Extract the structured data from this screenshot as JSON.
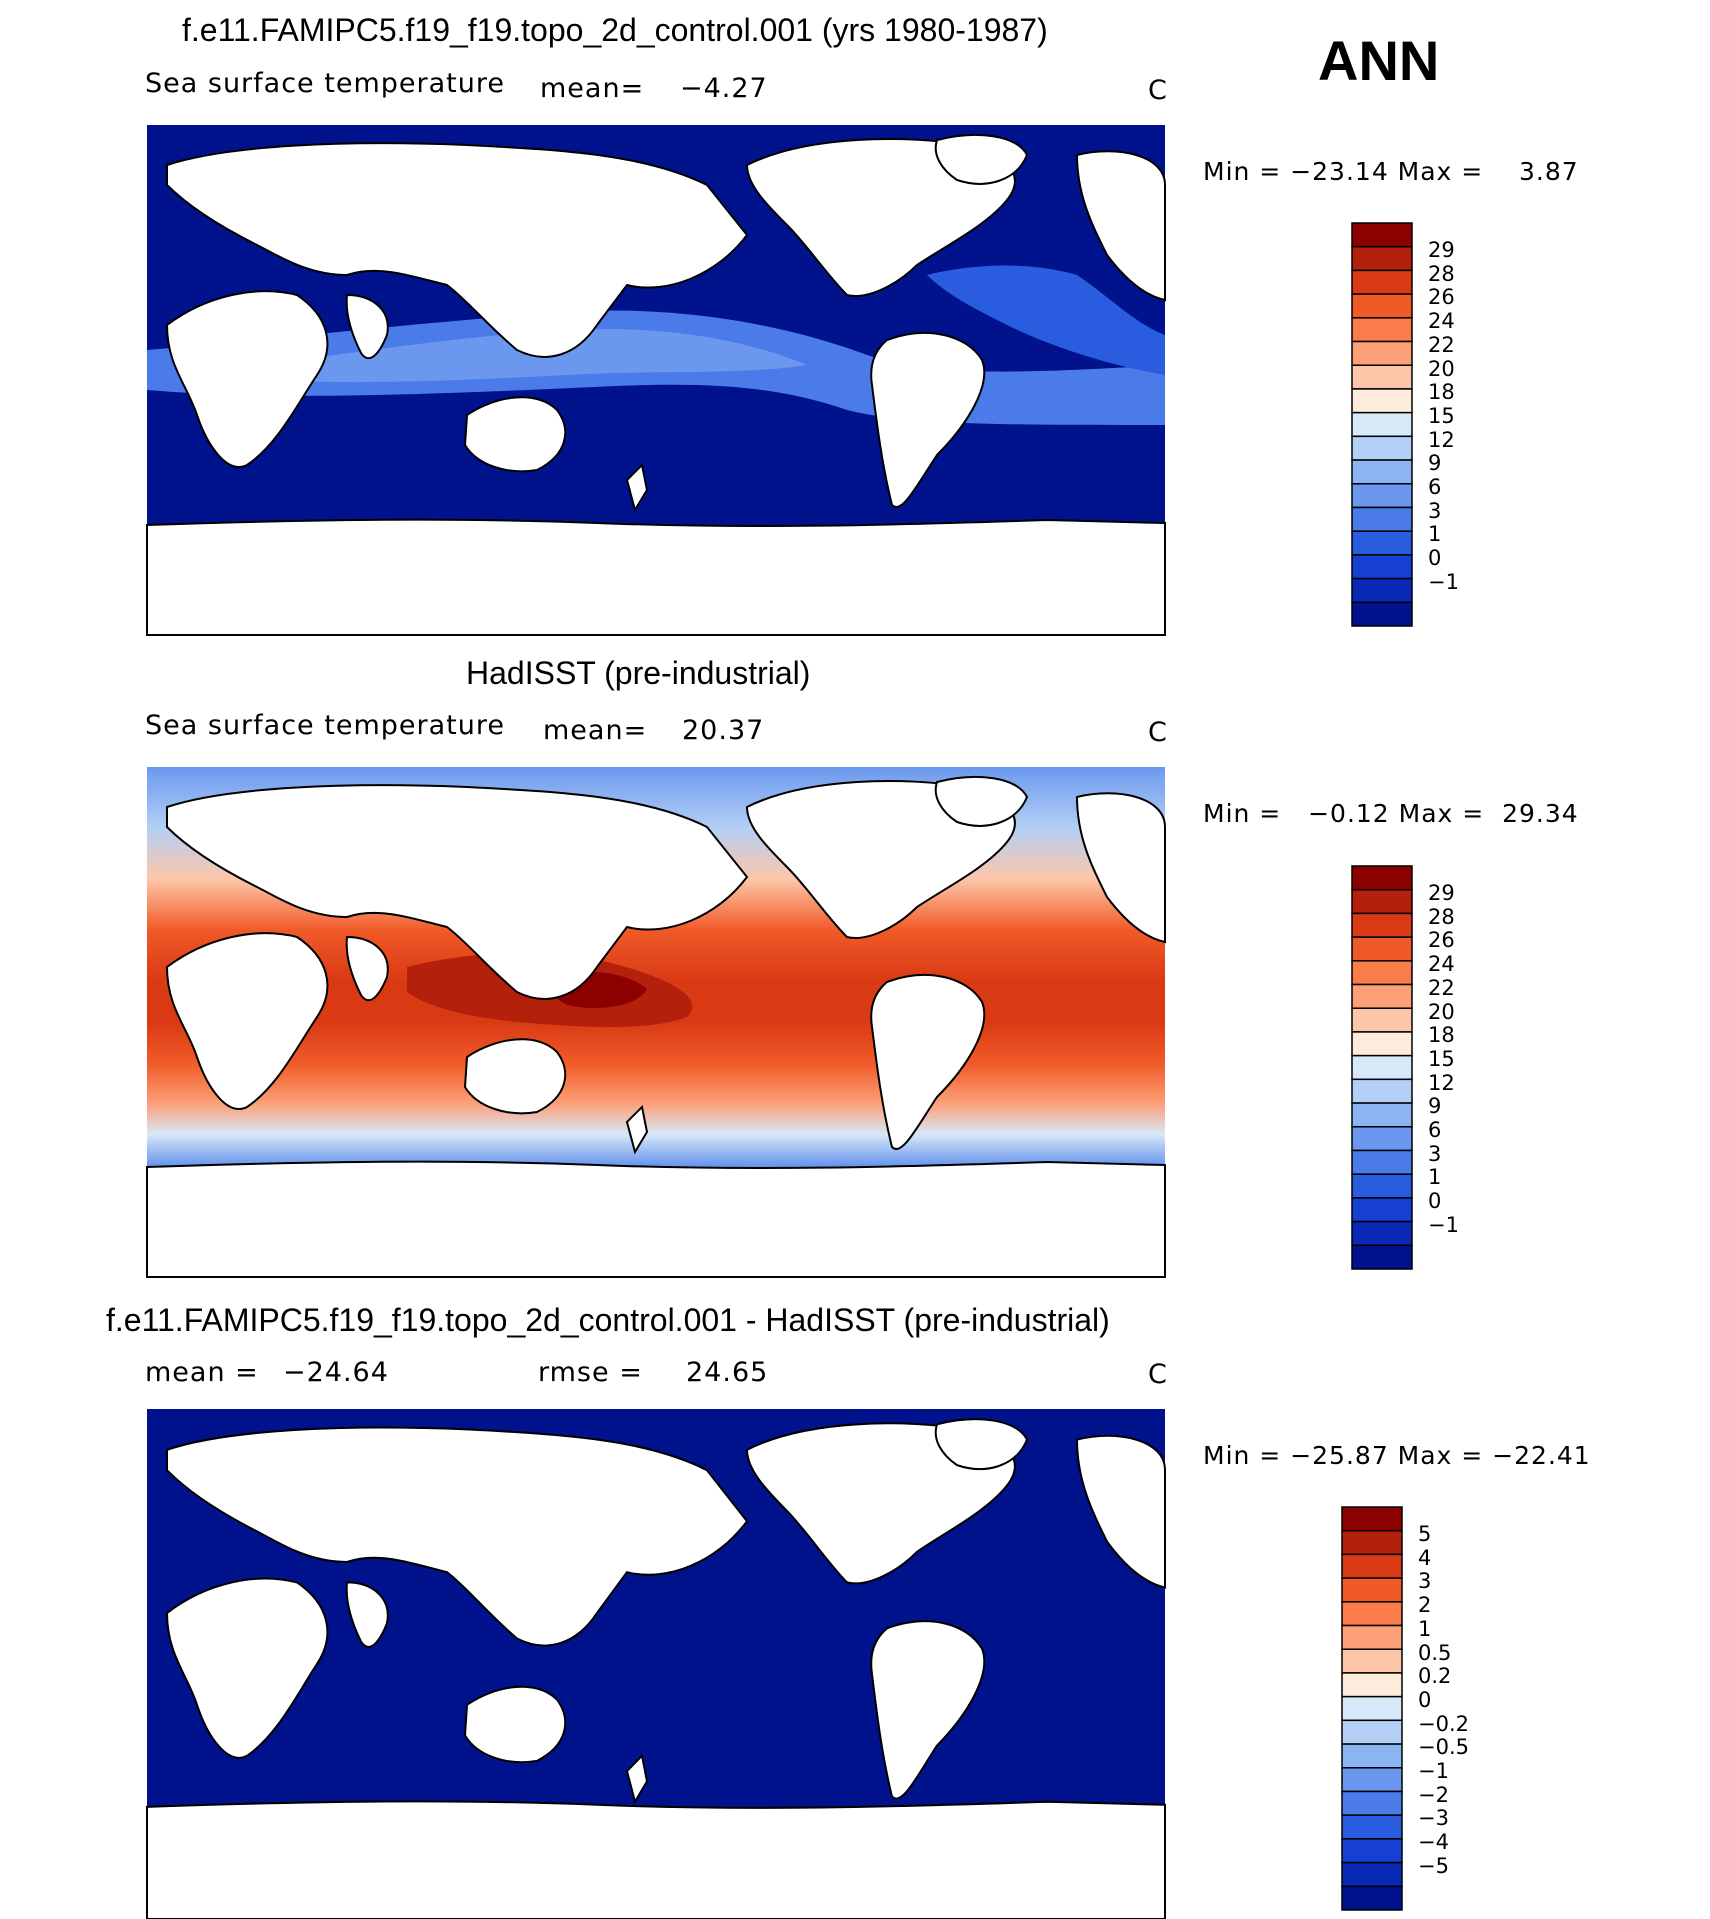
{
  "season": "ANN",
  "units": "C",
  "colorbars": {
    "sst_colors": [
      "#8c0000",
      "#b3200c",
      "#d93a14",
      "#f05a28",
      "#fa7c4a",
      "#fca078",
      "#fdc6a8",
      "#fdebdc",
      "#d7e8f8",
      "#b4cff5",
      "#8db4f2",
      "#6b98ee",
      "#4b7be8",
      "#2a5ce0",
      "#1640d2",
      "#0a28b6",
      "#00128c"
    ],
    "sst_labels": [
      "29",
      "28",
      "26",
      "24",
      "22",
      "20",
      "18",
      "15",
      "12",
      "9",
      "6",
      "3",
      "1",
      "0",
      "−1"
    ],
    "diff_colors": [
      "#8c0000",
      "#b3200c",
      "#d93a14",
      "#f05a28",
      "#fa7c4a",
      "#fca078",
      "#fdc6a8",
      "#fdebdc",
      "#d7e8f8",
      "#b4cff5",
      "#8db4f2",
      "#6b98ee",
      "#4b7be8",
      "#2a5ce0",
      "#1640d2",
      "#0a28b6",
      "#00128c"
    ],
    "diff_labels": [
      "5",
      "4",
      "3",
      "2",
      "1",
      "0.5",
      "0.2",
      "0",
      "−0.2",
      "−0.5",
      "−1",
      "−2",
      "−3",
      "−4",
      "−5"
    ]
  },
  "chart_data": [
    {
      "type": "heatmap",
      "title": "f.e11.FAMIPC5.f19_f19.topo_2d_control.001 (yrs 1980-1987)",
      "variable": "Sea surface temperature",
      "stat_label": "mean=",
      "stat_value": "−4.27",
      "units": "C",
      "min_max_text": "Min = −23.14 Max =    3.87",
      "min": -23.14,
      "max": 3.87,
      "mean": -4.27,
      "colorbar": "sst"
    },
    {
      "type": "heatmap",
      "title": "HadISST (pre-industrial)",
      "variable": "Sea surface temperature",
      "stat_label": "mean=",
      "stat_value": "20.37",
      "units": "C",
      "min_max_text": "Min =   −0.12 Max =  29.34",
      "min": -0.12,
      "max": 29.34,
      "mean": 20.37,
      "colorbar": "sst"
    },
    {
      "type": "heatmap",
      "title": "f.e11.FAMIPC5.f19_f19.topo_2d_control.001 - HadISST (pre-industrial)",
      "stat_label": "mean =",
      "stat_value": "−24.64",
      "rmse_label": "rmse =",
      "rmse_value": "24.65",
      "units": "C",
      "min_max_text": "Min = −25.87 Max = −22.41",
      "min": -25.87,
      "max": -22.41,
      "mean": -24.64,
      "rmse": 24.65,
      "colorbar": "diff"
    }
  ]
}
